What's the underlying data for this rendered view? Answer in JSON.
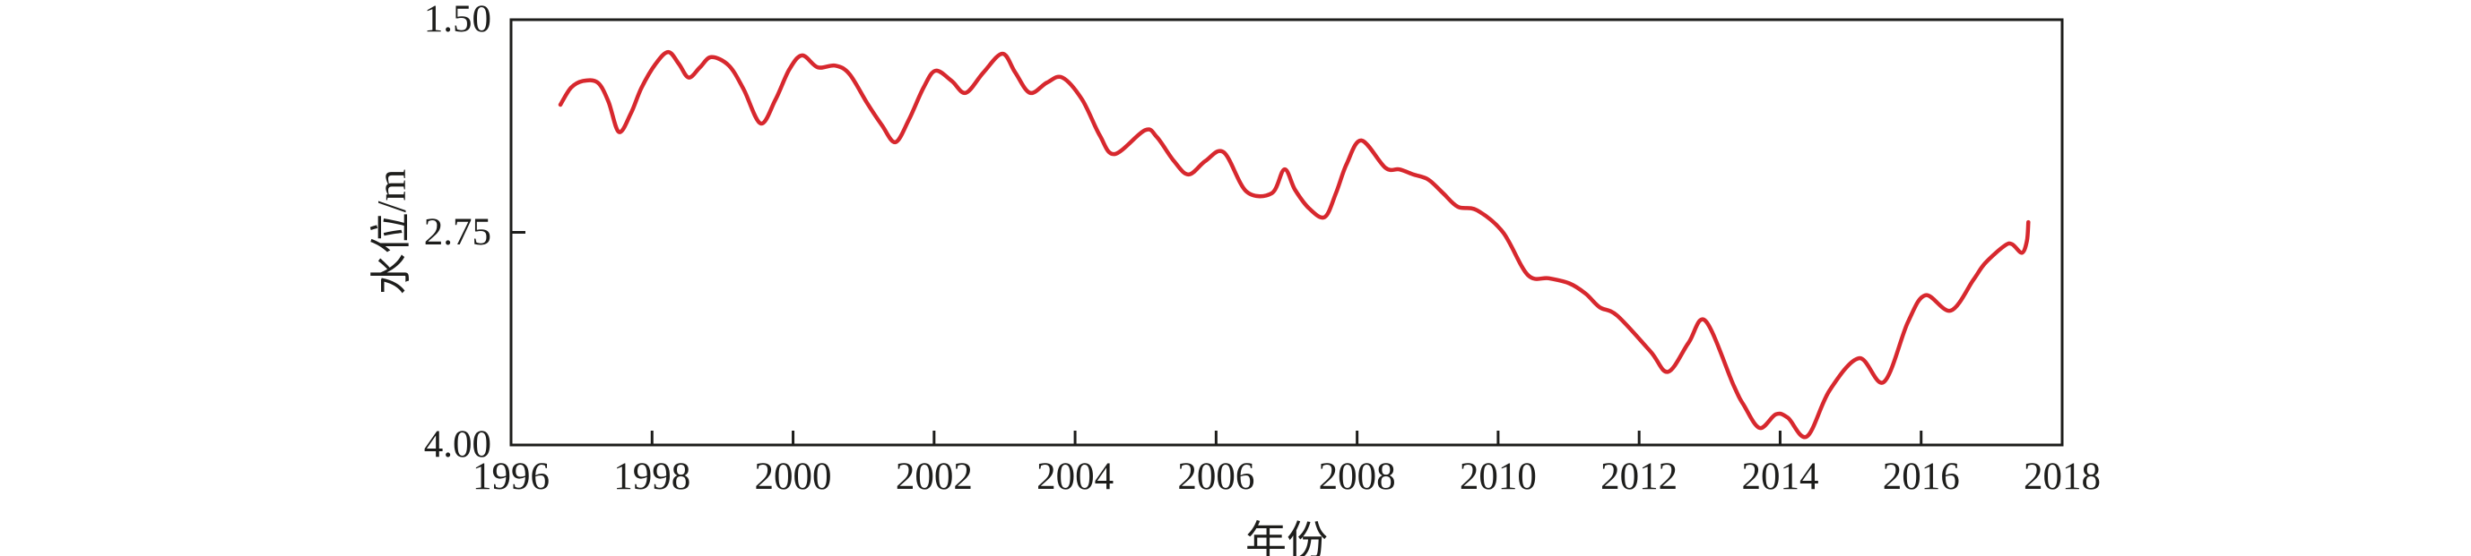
{
  "figure": {
    "background": "#ffffff",
    "axis_color": "#1d1d1b",
    "text_color": "#1d1d1b"
  },
  "chart_data": {
    "type": "line",
    "title": "",
    "xlabel": "年份",
    "ylabel": "水位/m",
    "grid": false,
    "legend": null,
    "x_axis": {
      "min": 1996,
      "max": 2018,
      "tick_values": [
        1996,
        1998,
        2000,
        2002,
        2004,
        2006,
        2008,
        2010,
        2012,
        2014,
        2016,
        2018
      ],
      "tick_labels": [
        "1996",
        "1998",
        "2000",
        "2002",
        "2004",
        "2006",
        "2008",
        "2010",
        "2012",
        "2014",
        "2016",
        "2018"
      ]
    },
    "y_axis": {
      "min": 1.5,
      "max": 4.0,
      "inverted": true,
      "tick_values": [
        1.5,
        2.75,
        4.0
      ],
      "tick_labels": [
        "1.50",
        "2.75",
        "4.00"
      ]
    },
    "series": [
      {
        "name": "水位",
        "color": "#d7282e",
        "points": [
          [
            1996.7,
            2.0
          ],
          [
            1996.85,
            1.9
          ],
          [
            1997.02,
            1.86
          ],
          [
            1997.23,
            1.87
          ],
          [
            1997.38,
            1.98
          ],
          [
            1997.53,
            2.16
          ],
          [
            1997.7,
            2.05
          ],
          [
            1997.85,
            1.9
          ],
          [
            1998.05,
            1.76
          ],
          [
            1998.23,
            1.69
          ],
          [
            1998.38,
            1.76
          ],
          [
            1998.52,
            1.84
          ],
          [
            1998.68,
            1.78
          ],
          [
            1998.84,
            1.72
          ],
          [
            1999.09,
            1.77
          ],
          [
            1999.3,
            1.91
          ],
          [
            1999.54,
            2.11
          ],
          [
            1999.75,
            1.97
          ],
          [
            1999.95,
            1.79
          ],
          [
            2000.13,
            1.71
          ],
          [
            2000.35,
            1.78
          ],
          [
            2000.6,
            1.77
          ],
          [
            2000.8,
            1.82
          ],
          [
            2001.05,
            1.99
          ],
          [
            2001.26,
            2.12
          ],
          [
            2001.45,
            2.22
          ],
          [
            2001.64,
            2.09
          ],
          [
            2001.85,
            1.9
          ],
          [
            2002.02,
            1.8
          ],
          [
            2002.25,
            1.86
          ],
          [
            2002.45,
            1.93
          ],
          [
            2002.7,
            1.81
          ],
          [
            2002.97,
            1.7
          ],
          [
            2003.15,
            1.81
          ],
          [
            2003.36,
            1.93
          ],
          [
            2003.6,
            1.87
          ],
          [
            2003.82,
            1.84
          ],
          [
            2004.1,
            1.97
          ],
          [
            2004.35,
            2.18
          ],
          [
            2004.56,
            2.29
          ],
          [
            2004.99,
            2.15
          ],
          [
            2005.16,
            2.19
          ],
          [
            2005.4,
            2.33
          ],
          [
            2005.61,
            2.41
          ],
          [
            2005.85,
            2.33
          ],
          [
            2006.11,
            2.28
          ],
          [
            2006.43,
            2.51
          ],
          [
            2006.79,
            2.52
          ],
          [
            2006.97,
            2.38
          ],
          [
            2007.12,
            2.5
          ],
          [
            2007.32,
            2.61
          ],
          [
            2007.54,
            2.66
          ],
          [
            2007.7,
            2.52
          ],
          [
            2007.85,
            2.35
          ],
          [
            2008.06,
            2.21
          ],
          [
            2008.4,
            2.37
          ],
          [
            2008.6,
            2.38
          ],
          [
            2008.8,
            2.41
          ],
          [
            2009.01,
            2.44
          ],
          [
            2009.22,
            2.52
          ],
          [
            2009.43,
            2.6
          ],
          [
            2009.7,
            2.62
          ],
          [
            2010.07,
            2.75
          ],
          [
            2010.42,
            3.0
          ],
          [
            2010.72,
            3.02
          ],
          [
            2011.01,
            3.05
          ],
          [
            2011.24,
            3.11
          ],
          [
            2011.44,
            3.19
          ],
          [
            2011.69,
            3.24
          ],
          [
            2012.16,
            3.45
          ],
          [
            2012.41,
            3.57
          ],
          [
            2012.7,
            3.4
          ],
          [
            2012.94,
            3.27
          ],
          [
            2013.34,
            3.65
          ],
          [
            2013.49,
            3.77
          ],
          [
            2013.71,
            3.9
          ],
          [
            2013.94,
            3.82
          ],
          [
            2014.11,
            3.84
          ],
          [
            2014.38,
            3.95
          ],
          [
            2014.7,
            3.68
          ],
          [
            2015.12,
            3.49
          ],
          [
            2015.47,
            3.63
          ],
          [
            2015.81,
            3.28
          ],
          [
            2016.06,
            3.12
          ],
          [
            2016.42,
            3.21
          ],
          [
            2016.74,
            3.03
          ],
          [
            2016.91,
            2.93
          ],
          [
            2017.18,
            2.83
          ],
          [
            2017.29,
            2.82
          ],
          [
            2017.43,
            2.87
          ],
          [
            2017.5,
            2.8
          ],
          [
            2017.52,
            2.69
          ]
        ]
      }
    ]
  }
}
